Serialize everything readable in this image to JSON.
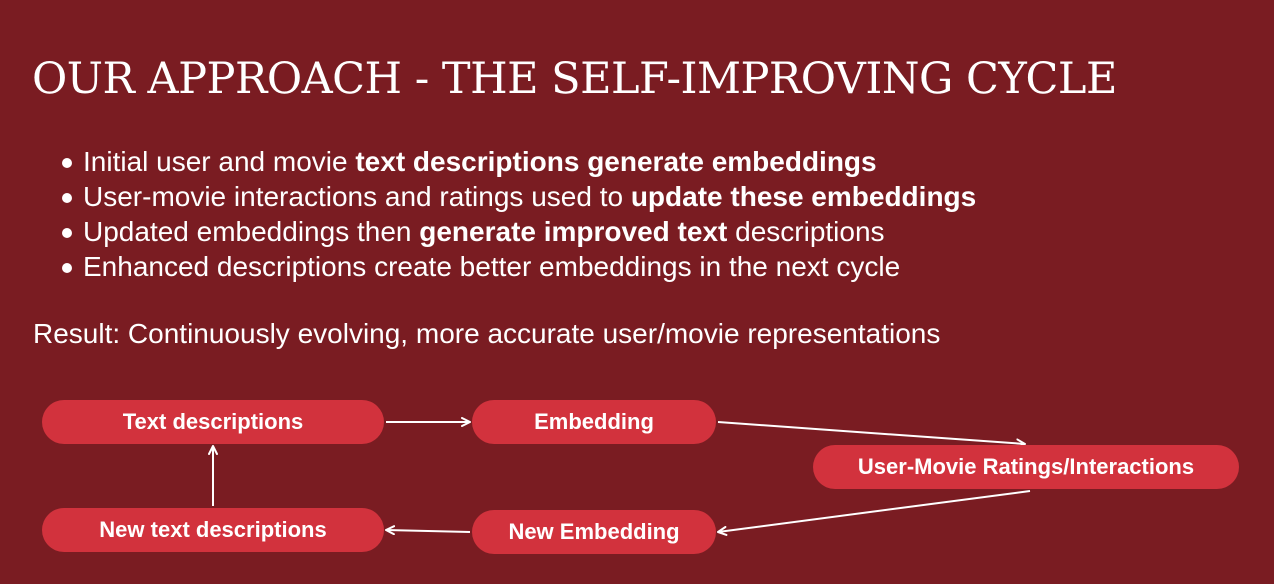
{
  "slide": {
    "title": "OUR APPROACH - THE SELF-IMPROVING CYCLE",
    "bullets": [
      {
        "plain": "Initial user and movie ",
        "bold": "text descriptions generate embeddings",
        "after": ""
      },
      {
        "plain": "User-movie interactions and ratings used to ",
        "bold": "update these embeddings",
        "after": ""
      },
      {
        "plain": "Updated embeddings then ",
        "bold": "generate improved text",
        "after": " descriptions"
      },
      {
        "plain": "Enhanced descriptions create better embeddings in the next cycle",
        "bold": "",
        "after": ""
      }
    ],
    "result": "Result: Continuously evolving, more accurate user/movie representations"
  },
  "diagram": {
    "nodes": {
      "text_descriptions": "Text descriptions",
      "embedding": "Embedding",
      "ratings": "User-Movie Ratings/Interactions",
      "new_embedding": "New Embedding",
      "new_text_descriptions": "New text descriptions"
    },
    "edges": [
      {
        "from": "text_descriptions",
        "to": "embedding"
      },
      {
        "from": "embedding",
        "to": "ratings"
      },
      {
        "from": "ratings",
        "to": "new_embedding"
      },
      {
        "from": "new_embedding",
        "to": "new_text_descriptions"
      },
      {
        "from": "new_text_descriptions",
        "to": "text_descriptions"
      }
    ],
    "colors": {
      "background": "#7a1c22",
      "node_fill": "#d2323d",
      "text": "#ffffff"
    }
  }
}
